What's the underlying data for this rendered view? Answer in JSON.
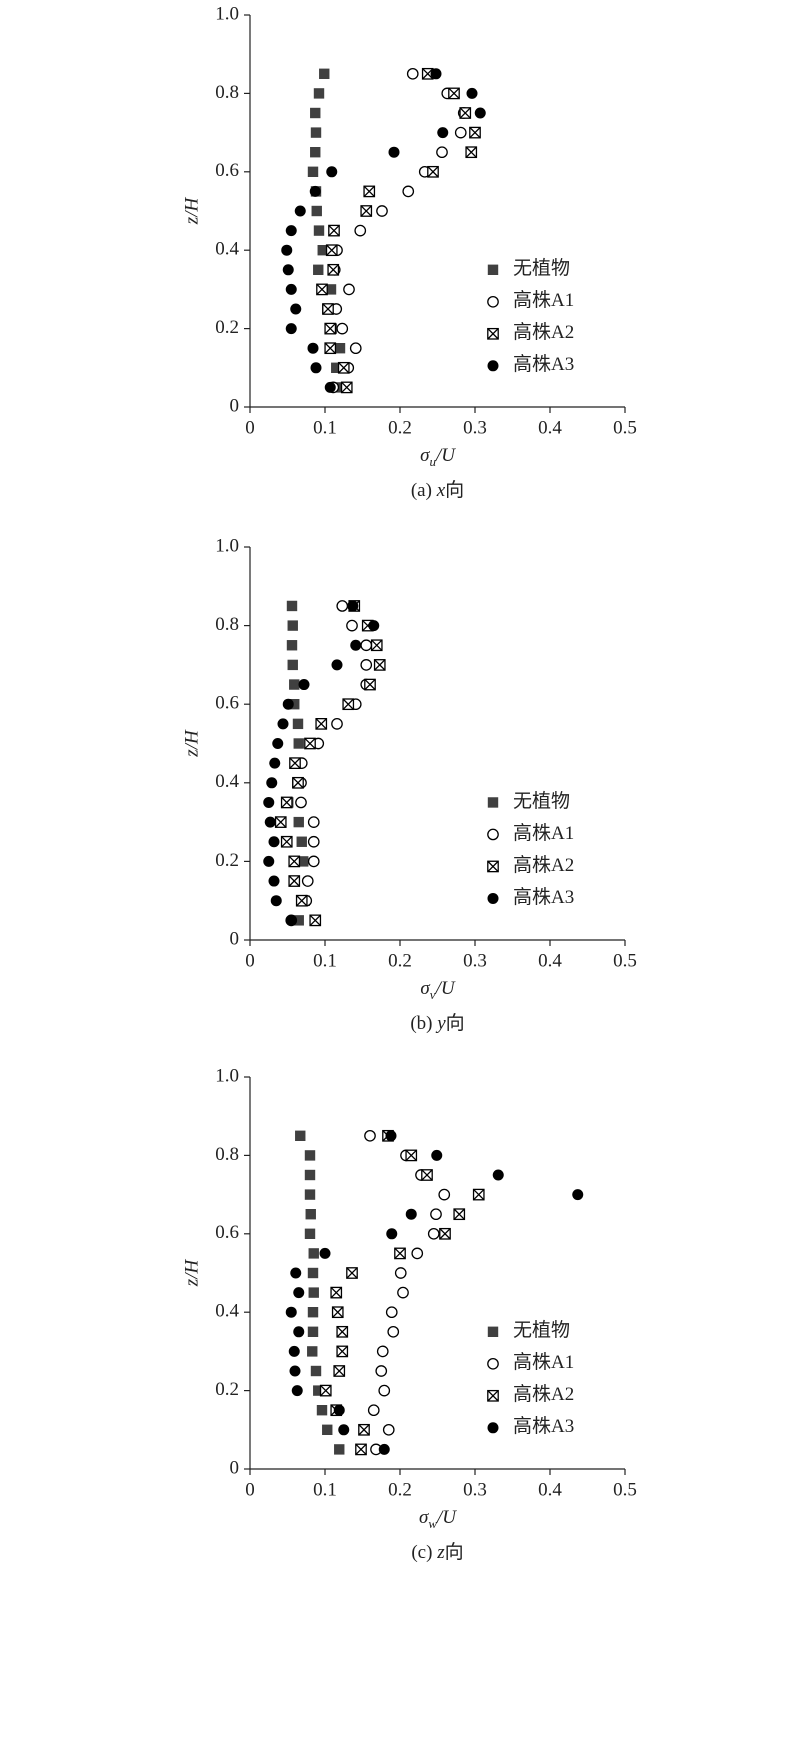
{
  "chart_data": [
    {
      "type": "scatter",
      "xlabel": [
        "σ",
        "u",
        "/U"
      ],
      "ylabel": "z/H",
      "caption": [
        "(a) ",
        "x",
        "向"
      ],
      "xlim": [
        0,
        0.5
      ],
      "ylim": [
        0,
        1
      ],
      "xticks": [
        0,
        0.1,
        0.2,
        0.3,
        0.4,
        0.5
      ],
      "yticks": [
        0,
        0.2,
        0.4,
        0.6,
        0.8,
        {
          "value": 1,
          "label": "1.0"
        }
      ],
      "legend": "right",
      "y": [
        0.05,
        0.1,
        0.15,
        0.2,
        0.25,
        0.3,
        0.35,
        0.4,
        0.45,
        0.5,
        0.55,
        0.6,
        0.65,
        0.7,
        0.75,
        0.8,
        0.85
      ],
      "series": [
        {
          "name": "无植物",
          "marker": "square",
          "color": "#404040",
          "values": [
            0.115,
            0.115,
            0.12,
            0.109,
            0.103,
            0.108,
            0.091,
            0.097,
            0.092,
            0.089,
            0.088,
            0.084,
            0.087,
            0.088,
            0.087,
            0.092,
            0.099
          ]
        },
        {
          "name": "高株A1",
          "marker": "circle-open",
          "color": "#000000",
          "values": [
            0.111,
            0.131,
            0.141,
            0.123,
            0.115,
            0.132,
            0.113,
            0.116,
            0.147,
            0.176,
            0.211,
            0.233,
            0.256,
            0.281,
            0.285,
            0.263,
            0.217
          ]
        },
        {
          "name": "高株A2",
          "marker": "crossed-square",
          "color": "#000000",
          "values": [
            0.129,
            0.125,
            0.107,
            0.107,
            0.104,
            0.096,
            0.111,
            0.109,
            0.112,
            0.155,
            0.159,
            0.244,
            0.295,
            0.3,
            0.287,
            0.272,
            0.237
          ]
        },
        {
          "name": "高株A3",
          "marker": "circle-filled",
          "color": "#000000",
          "values": [
            0.107,
            0.088,
            0.084,
            0.055,
            0.061,
            0.055,
            0.051,
            0.049,
            0.055,
            0.067,
            0.087,
            0.109,
            0.192,
            0.257,
            0.307,
            0.296,
            0.248
          ]
        }
      ]
    },
    {
      "type": "scatter",
      "xlabel": [
        "σ",
        "v",
        "/U"
      ],
      "ylabel": "z/H",
      "caption": [
        "(b) ",
        "y",
        "向"
      ],
      "xlim": [
        0,
        0.5
      ],
      "ylim": [
        0,
        1
      ],
      "xticks": [
        0,
        0.1,
        0.2,
        0.3,
        0.4,
        0.5
      ],
      "yticks": [
        0,
        0.2,
        0.4,
        0.6,
        0.8,
        {
          "value": 1,
          "label": "1.0"
        }
      ],
      "legend": "right",
      "y": [
        0.05,
        0.1,
        0.15,
        0.2,
        0.25,
        0.3,
        0.35,
        0.4,
        0.45,
        0.5,
        0.55,
        0.6,
        0.65,
        0.7,
        0.75,
        0.8,
        0.85
      ],
      "series": [
        {
          "name": "无植物",
          "marker": "square",
          "color": "#404040",
          "values": [
            0.065,
            0.073,
            0.059,
            0.071,
            0.069,
            0.065,
            0.051,
            0.063,
            0.06,
            0.065,
            0.064,
            0.059,
            0.059,
            0.057,
            0.056,
            0.057,
            0.056
          ]
        },
        {
          "name": "高株A1",
          "marker": "circle-open",
          "color": "#000000",
          "values": [
            0.055,
            0.075,
            0.077,
            0.085,
            0.085,
            0.085,
            0.068,
            0.068,
            0.069,
            0.091,
            0.116,
            0.141,
            0.155,
            0.155,
            0.155,
            0.136,
            0.123
          ]
        },
        {
          "name": "高株A2",
          "marker": "crossed-square",
          "color": "#000000",
          "values": [
            0.087,
            0.069,
            0.059,
            0.059,
            0.049,
            0.041,
            0.049,
            0.064,
            0.06,
            0.08,
            0.095,
            0.131,
            0.16,
            0.173,
            0.169,
            0.157,
            0.139
          ]
        },
        {
          "name": "高株A3",
          "marker": "circle-filled",
          "color": "#000000",
          "values": [
            0.055,
            0.035,
            0.032,
            0.025,
            0.032,
            0.027,
            0.025,
            0.029,
            0.033,
            0.037,
            0.044,
            0.051,
            0.072,
            0.116,
            0.141,
            0.165,
            0.137
          ]
        }
      ]
    },
    {
      "type": "scatter",
      "xlabel": [
        "σ",
        "w",
        "/U"
      ],
      "ylabel": "z/H",
      "caption": [
        "(c) ",
        "z",
        "向"
      ],
      "xlim": [
        0,
        0.5
      ],
      "ylim": [
        0,
        1
      ],
      "xticks": [
        0,
        0.1,
        0.2,
        0.3,
        0.4,
        0.5
      ],
      "yticks": [
        0,
        0.2,
        0.4,
        0.6,
        0.8,
        {
          "value": 1,
          "label": "1.0"
        }
      ],
      "legend": "right",
      "y": [
        0.05,
        0.1,
        0.15,
        0.2,
        0.25,
        0.3,
        0.35,
        0.4,
        0.45,
        0.5,
        0.55,
        0.6,
        0.65,
        0.7,
        0.75,
        0.8,
        0.85
      ],
      "series": [
        {
          "name": "无植物",
          "marker": "square",
          "color": "#404040",
          "values": [
            0.119,
            0.103,
            0.096,
            0.091,
            0.088,
            0.083,
            0.084,
            0.084,
            0.085,
            0.084,
            0.085,
            0.08,
            0.081,
            0.08,
            0.08,
            0.08,
            0.067
          ]
        },
        {
          "name": "高株A1",
          "marker": "circle-open",
          "color": "#000000",
          "values": [
            0.168,
            0.185,
            0.165,
            0.179,
            0.175,
            0.177,
            0.191,
            0.189,
            0.204,
            0.201,
            0.223,
            0.245,
            0.248,
            0.259,
            0.228,
            0.208,
            0.16
          ]
        },
        {
          "name": "高株A2",
          "marker": "crossed-square",
          "color": "#000000",
          "values": [
            0.148,
            0.152,
            0.115,
            0.101,
            0.119,
            0.123,
            0.123,
            0.117,
            0.115,
            0.136,
            0.2,
            0.26,
            0.279,
            0.305,
            0.236,
            0.215,
            0.184
          ]
        },
        {
          "name": "高株A3",
          "marker": "circle-filled",
          "color": "#000000",
          "values": [
            0.179,
            0.125,
            0.119,
            0.063,
            0.06,
            0.059,
            0.065,
            0.055,
            0.065,
            0.061,
            0.1,
            0.189,
            0.215,
            0.437,
            0.331,
            0.249,
            0.188
          ]
        }
      ]
    }
  ]
}
